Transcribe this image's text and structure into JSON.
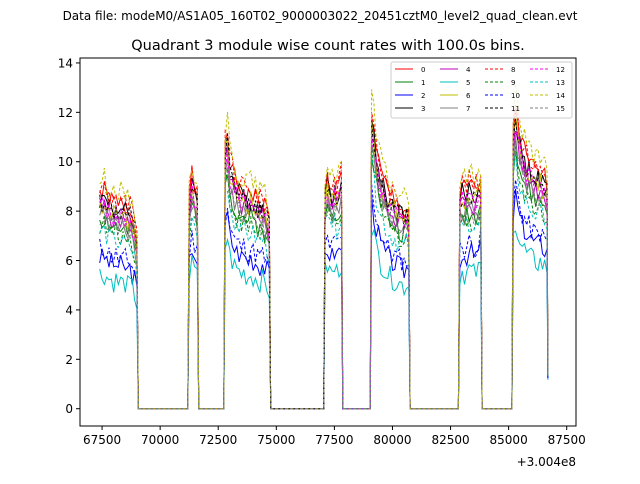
{
  "chart_data": {
    "type": "line",
    "suptitle": "Data file: modeM0/AS1A05_160T02_9000003022_20451cztM0_level2_quad_clean.evt",
    "title": "Quadrant 3 module wise count rates with 100.0s bins.",
    "xlabel": "",
    "ylabel": "",
    "x_offset_label": "+3.004e8",
    "xlim": [
      66550,
      87900
    ],
    "ylim": [
      -0.7,
      14.2
    ],
    "x_ticks": [
      67500,
      70000,
      72500,
      75000,
      77500,
      80000,
      82500,
      85000,
      87500
    ],
    "x_tick_labels": [
      "67500",
      "70000",
      "72500",
      "75000",
      "77500",
      "80000",
      "82500",
      "85000",
      "87500"
    ],
    "y_ticks": [
      0,
      2,
      4,
      6,
      8,
      10,
      12,
      14
    ],
    "y_tick_labels": [
      "0",
      "2",
      "4",
      "6",
      "8",
      "10",
      "12",
      "14"
    ],
    "grid": false,
    "legend_position": "top-right",
    "segments": [
      {
        "start": 67400,
        "end": 69000,
        "shape": [
          8.8,
          8.7,
          8.8,
          8.6,
          8.5,
          8.4,
          8.3,
          8.4,
          8.2,
          8.3,
          8.1,
          8.2,
          8.0,
          8.1,
          7.8,
          7.5,
          6.8
        ]
      },
      {
        "start": 71250,
        "end": 71600,
        "shape": [
          8.4,
          9.4,
          9.0,
          8.6
        ]
      },
      {
        "start": 72800,
        "end": 74700,
        "shape": [
          10.6,
          11.2,
          10.0,
          9.6,
          9.3,
          9.1,
          9.0,
          8.8,
          8.9,
          8.7,
          8.6,
          8.8,
          8.6,
          8.5,
          8.4,
          8.3,
          8.4,
          8.2,
          8.0,
          7.6
        ]
      },
      {
        "start": 77100,
        "end": 77800,
        "shape": [
          8.9,
          9.3,
          9.0,
          8.8,
          9.1,
          8.9,
          9.2,
          9.4
        ]
      },
      {
        "start": 79100,
        "end": 80700,
        "shape": [
          12.0,
          11.3,
          10.5,
          10.0,
          9.5,
          9.3,
          9.0,
          8.8,
          8.6,
          8.5,
          8.4,
          8.3,
          8.2,
          8.1,
          8.0,
          8.2,
          8.0
        ]
      },
      {
        "start": 82900,
        "end": 83800,
        "shape": [
          8.7,
          9.0,
          8.8,
          8.9,
          9.1,
          9.0,
          8.8,
          8.9,
          9.0,
          9.3
        ]
      },
      {
        "start": 85200,
        "end": 86650,
        "shape": [
          11.2,
          12.3,
          11.6,
          11.0,
          10.6,
          10.4,
          10.1,
          10.0,
          9.8,
          9.7,
          9.6,
          9.5,
          9.6,
          9.4,
          9.3,
          9.1
        ]
      }
    ],
    "series": [
      {
        "name": "0",
        "color": "#ff0000",
        "dash": "solid",
        "level": 1.0,
        "seed": 1
      },
      {
        "name": "1",
        "color": "#008000",
        "dash": "solid",
        "level": 0.88,
        "seed": 2
      },
      {
        "name": "2",
        "color": "#0000ff",
        "dash": "solid",
        "level": 0.7,
        "seed": 3
      },
      {
        "name": "3",
        "color": "#000000",
        "dash": "solid",
        "level": 0.97,
        "seed": 4
      },
      {
        "name": "4",
        "color": "#bf00bf",
        "dash": "solid",
        "level": 0.93,
        "seed": 5
      },
      {
        "name": "5",
        "color": "#00bfbf",
        "dash": "solid",
        "level": 0.62,
        "seed": 6
      },
      {
        "name": "6",
        "color": "#bfbf00",
        "dash": "solid",
        "level": 0.95,
        "seed": 7
      },
      {
        "name": "7",
        "color": "#808080",
        "dash": "solid",
        "level": 0.9,
        "seed": 8
      },
      {
        "name": "8",
        "color": "#ff0000",
        "dash": "dashed",
        "level": 1.02,
        "seed": 9
      },
      {
        "name": "9",
        "color": "#008000",
        "dash": "dashed",
        "level": 0.85,
        "seed": 10
      },
      {
        "name": "10",
        "color": "#0000ff",
        "dash": "dashed",
        "level": 0.74,
        "seed": 11
      },
      {
        "name": "11",
        "color": "#000000",
        "dash": "dashed",
        "level": 0.96,
        "seed": 12
      },
      {
        "name": "12",
        "color": "#ff00ff",
        "dash": "dashed",
        "level": 0.94,
        "seed": 13
      },
      {
        "name": "13",
        "color": "#00bfbf",
        "dash": "dashed",
        "level": 0.82,
        "seed": 14
      },
      {
        "name": "14",
        "color": "#bfbf00",
        "dash": "dashed",
        "level": 1.06,
        "seed": 15
      },
      {
        "name": "15",
        "color": "#808080",
        "dash": "dashed",
        "level": 0.89,
        "seed": 16
      }
    ]
  }
}
